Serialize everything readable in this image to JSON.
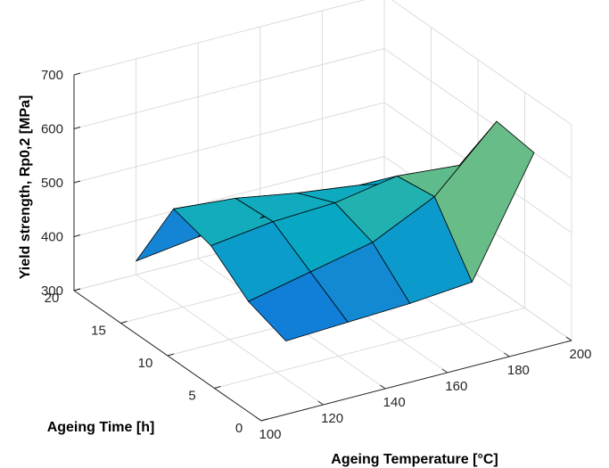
{
  "chart_data": {
    "type": "surface",
    "title": "",
    "xlabel": "Ageing Temperature [°C]",
    "ylabel": "Ageing Time [h]",
    "zlabel": "Yield strength, Rp0,2   [MPa]",
    "xlim": [
      100,
      200
    ],
    "ylim": [
      0,
      20
    ],
    "zlim": [
      300,
      700
    ],
    "xticks": [
      "100",
      "120",
      "140",
      "160",
      "180",
      "200"
    ],
    "yticks": [
      "0",
      "5",
      "10",
      "15",
      "20"
    ],
    "zticks": [
      "300",
      "400",
      "500",
      "600",
      "700"
    ],
    "grid": true,
    "colormap": "parula",
    "x": [
      120,
      140,
      160,
      180,
      200
    ],
    "y": [
      4,
      8,
      12,
      16,
      20
    ],
    "z": [
      [
        370,
        375,
        380,
        390,
        600
      ],
      [
        395,
        420,
        445,
        500,
        610
      ],
      [
        450,
        465,
        470,
        490,
        480
      ],
      [
        470,
        460,
        440,
        425,
        400
      ],
      [
        325,
        340,
        345,
        350,
        355
      ]
    ]
  }
}
